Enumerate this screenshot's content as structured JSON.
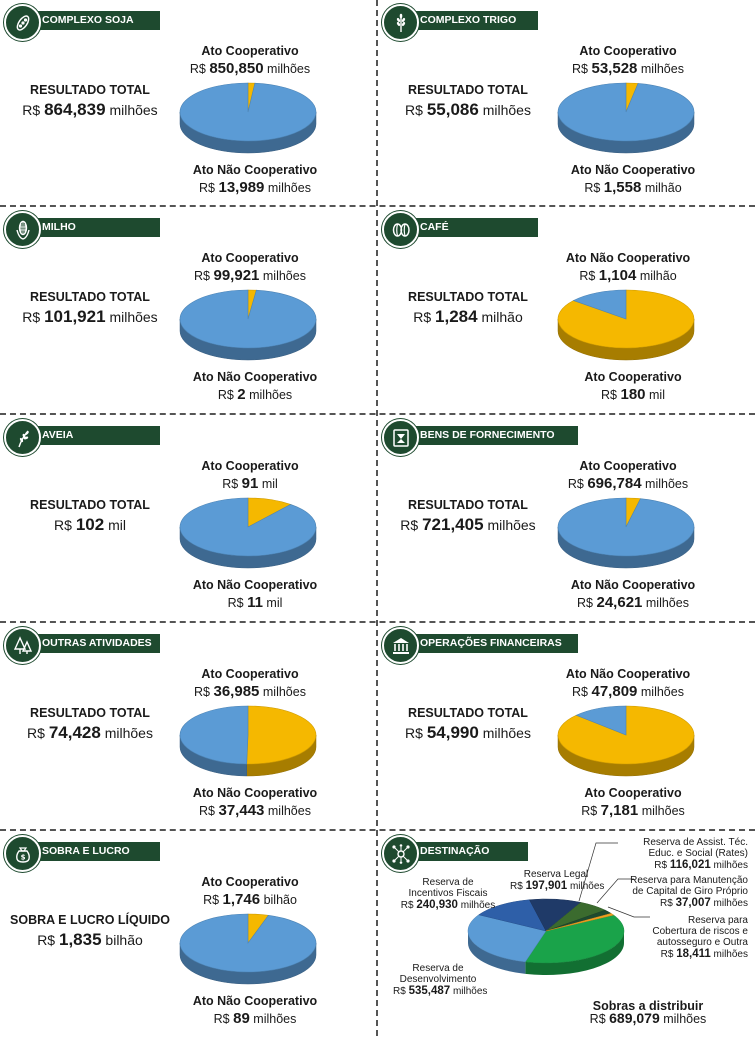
{
  "colors": {
    "header": "#1e4a2f",
    "coop": "#5b9bd5",
    "coop_dark": "#3f6fa0",
    "noncoop": "#f5b800",
    "noncoop_dark": "#b8890a"
  },
  "panels": [
    {
      "id": "soja",
      "icon": "soy-icon",
      "header": "COMPLEXO SOJA",
      "total_label": "RESULTADO TOTAL",
      "total_prefix": "R$",
      "total_value": "864,839",
      "total_unit": "milhões",
      "coop_label": "Ato Cooperativo",
      "coop_prefix": "R$",
      "coop_value": "850,850",
      "coop_unit": "milhões",
      "non_label": "Ato Não Cooperativo",
      "non_prefix": "R$",
      "non_value": "13,989",
      "non_unit": "milhões",
      "layout": "coop-top"
    },
    {
      "id": "trigo",
      "icon": "wheat-icon",
      "header": "COMPLEXO TRIGO",
      "total_label": "RESULTADO TOTAL",
      "total_prefix": "R$",
      "total_value": "55,086",
      "total_unit": "milhões",
      "coop_label": "Ato Cooperativo",
      "coop_prefix": "R$",
      "coop_value": "53,528",
      "coop_unit": "milhões",
      "non_label": "Ato Não Cooperativo",
      "non_prefix": "R$",
      "non_value": "1,558",
      "non_unit": "milhão",
      "layout": "coop-top"
    },
    {
      "id": "milho",
      "icon": "corn-icon",
      "header": "MILHO",
      "total_label": "RESULTADO TOTAL",
      "total_prefix": "R$",
      "total_value": "101,921",
      "total_unit": "milhões",
      "coop_label": "Ato Cooperativo",
      "coop_prefix": "R$",
      "coop_value": "99,921",
      "coop_unit": "milhões",
      "non_label": "Ato Não Cooperativo",
      "non_prefix": "R$",
      "non_value": "2",
      "non_unit": "milhões",
      "layout": "coop-top"
    },
    {
      "id": "cafe",
      "icon": "coffee-icon",
      "header": "CAFÉ",
      "total_label": "RESULTADO TOTAL",
      "total_prefix": "R$",
      "total_value": "1,284",
      "total_unit": "milhão",
      "coop_label": "Ato Cooperativo",
      "coop_prefix": "R$",
      "coop_value": "180",
      "coop_unit": "mil",
      "non_label": "Ato Não Cooperativo",
      "non_prefix": "R$",
      "non_value": "1,104",
      "non_unit": "milhão",
      "layout": "non-top"
    },
    {
      "id": "aveia",
      "icon": "oat-icon",
      "header": "AVEIA",
      "total_label": "RESULTADO TOTAL",
      "total_prefix": "R$",
      "total_value": "102",
      "total_unit": "mil",
      "coop_label": "Ato Cooperativo",
      "coop_prefix": "R$",
      "coop_value": "91",
      "coop_unit": "mil",
      "non_label": "Ato Não Cooperativo",
      "non_prefix": "R$",
      "non_value": "11",
      "non_unit": "mil",
      "layout": "coop-top"
    },
    {
      "id": "bens",
      "icon": "supply-icon",
      "header": "BENS DE FORNECIMENTO",
      "total_label": "RESULTADO TOTAL",
      "total_prefix": "R$",
      "total_value": "721,405",
      "total_unit": "milhões",
      "coop_label": "Ato Cooperativo",
      "coop_prefix": "R$",
      "coop_value": "696,784",
      "coop_unit": "milhões",
      "non_label": "Ato Não Cooperativo",
      "non_prefix": "R$",
      "non_value": "24,621",
      "non_unit": "milhões",
      "layout": "coop-top"
    },
    {
      "id": "outras",
      "icon": "trees-icon",
      "header": "OUTRAS ATIVIDADES",
      "total_label": "RESULTADO TOTAL",
      "total_prefix": "R$",
      "total_value": "74,428",
      "total_unit": "milhões",
      "coop_label": "Ato Cooperativo",
      "coop_prefix": "R$",
      "coop_value": "36,985",
      "coop_unit": "milhões",
      "non_label": "Ato Não Cooperativo",
      "non_prefix": "R$",
      "non_value": "37,443",
      "non_unit": "milhões",
      "layout": "coop-top"
    },
    {
      "id": "financeiras",
      "icon": "bank-icon",
      "header": "OPERAÇÕES FINANCEIRAS",
      "total_label": "RESULTADO TOTAL",
      "total_prefix": "R$",
      "total_value": "54,990",
      "total_unit": "milhões",
      "coop_label": "Ato Cooperativo",
      "coop_prefix": "R$",
      "coop_value": "7,181",
      "coop_unit": "milhões",
      "non_label": "Ato Não Cooperativo",
      "non_prefix": "R$",
      "non_value": "47,809",
      "non_unit": "milhões",
      "layout": "non-top"
    },
    {
      "id": "sobra",
      "icon": "money-icon",
      "header": "SOBRA E LUCRO",
      "total_label": "SOBRA E LUCRO LÍQUIDO",
      "total_prefix": "R$",
      "total_value": "1,835",
      "total_unit": "bilhão",
      "coop_label": "Ato Cooperativo",
      "coop_prefix": "R$",
      "coop_value": "1,746",
      "coop_unit": "bilhão",
      "non_label": "Ato Não Cooperativo",
      "non_prefix": "R$",
      "non_value": "89",
      "non_unit": "milhões",
      "layout": "coop-top"
    }
  ],
  "destinacao": {
    "header": "DESTINAÇÃO",
    "icon": "network-icon",
    "items": [
      {
        "label_lines": [
          "Reserva de",
          "Desenvolvimento"
        ],
        "prefix": "R$",
        "value": "535,487",
        "unit": "milhões"
      },
      {
        "label_lines": [
          "Reserva de",
          "Incentivos Fiscais"
        ],
        "prefix": "R$",
        "value": "240,930",
        "unit": "milhões"
      },
      {
        "label_lines": [
          "Reserva Legal"
        ],
        "prefix": "R$",
        "value": "197,901",
        "unit": "milhões"
      },
      {
        "label_lines": [
          "Reserva de Assist. Téc.",
          "Educ. e Social (Rates)"
        ],
        "prefix": "R$",
        "value": "116,021",
        "unit": "milhões"
      },
      {
        "label_lines": [
          "Reserva para Manutenção",
          "de Capital de Giro Próprio"
        ],
        "prefix": "R$",
        "value": "37,007",
        "unit": "milhões"
      },
      {
        "label_lines": [
          "Reserva para",
          "Cobertura de riscos e",
          "autosseguro e Outra"
        ],
        "prefix": "R$",
        "value": "18,411",
        "unit": "milhões"
      },
      {
        "label_lines": [
          "Sobras a distribuir"
        ],
        "prefix": "R$",
        "value": "689,079",
        "unit": "milhões"
      }
    ]
  },
  "chart_data": [
    {
      "type": "pie",
      "title": "COMPLEXO SOJA",
      "total": 864.839,
      "unit": "R$ milhões",
      "categories": [
        "Ato Cooperativo",
        "Ato Não Cooperativo"
      ],
      "values": [
        850.85,
        13.989
      ]
    },
    {
      "type": "pie",
      "title": "COMPLEXO TRIGO",
      "total": 55.086,
      "unit": "R$ milhões",
      "categories": [
        "Ato Cooperativo",
        "Ato Não Cooperativo"
      ],
      "values": [
        53.528,
        1.558
      ]
    },
    {
      "type": "pie",
      "title": "MILHO",
      "total": 101.921,
      "unit": "R$ milhões",
      "categories": [
        "Ato Cooperativo",
        "Ato Não Cooperativo"
      ],
      "values": [
        99.921,
        2
      ]
    },
    {
      "type": "pie",
      "title": "CAFÉ",
      "total": 1284,
      "unit": "R$ mil",
      "categories": [
        "Ato Cooperativo",
        "Ato Não Cooperativo"
      ],
      "values": [
        180,
        1104
      ]
    },
    {
      "type": "pie",
      "title": "AVEIA",
      "total": 102,
      "unit": "R$ mil",
      "categories": [
        "Ato Cooperativo",
        "Ato Não Cooperativo"
      ],
      "values": [
        91,
        11
      ]
    },
    {
      "type": "pie",
      "title": "BENS DE FORNECIMENTO",
      "total": 721.405,
      "unit": "R$ milhões",
      "categories": [
        "Ato Cooperativo",
        "Ato Não Cooperativo"
      ],
      "values": [
        696.784,
        24.621
      ]
    },
    {
      "type": "pie",
      "title": "OUTRAS ATIVIDADES",
      "total": 74.428,
      "unit": "R$ milhões",
      "categories": [
        "Ato Cooperativo",
        "Ato Não Cooperativo"
      ],
      "values": [
        36.985,
        37.443
      ]
    },
    {
      "type": "pie",
      "title": "OPERAÇÕES FINANCEIRAS",
      "total": 54.99,
      "unit": "R$ milhões",
      "categories": [
        "Ato Cooperativo",
        "Ato Não Cooperativo"
      ],
      "values": [
        7.181,
        47.809
      ]
    },
    {
      "type": "pie",
      "title": "SOBRA E LUCRO",
      "total": 1835,
      "unit": "R$ milhões",
      "categories": [
        "Ato Cooperativo",
        "Ato Não Cooperativo"
      ],
      "values": [
        1746,
        89
      ]
    },
    {
      "type": "pie",
      "title": "DESTINAÇÃO",
      "unit": "R$ milhões",
      "categories": [
        "Reserva de Desenvolvimento",
        "Reserva de Incentivos Fiscais",
        "Reserva Legal",
        "Reserva de Assist. Téc. Educ. e Social (Rates)",
        "Reserva para Manutenção de Capital de Giro Próprio",
        "Reserva para Cobertura de riscos e autosseguro e Outra",
        "Sobras a distribuir"
      ],
      "values": [
        535.487,
        240.93,
        197.901,
        116.021,
        37.007,
        18.411,
        689.079
      ],
      "colors": [
        "#5b9bd5",
        "#2e5fa8",
        "#1f3a68",
        "#3b6b2e",
        "#1e4a2f",
        "#f0a020",
        "#1aa34a"
      ]
    }
  ]
}
